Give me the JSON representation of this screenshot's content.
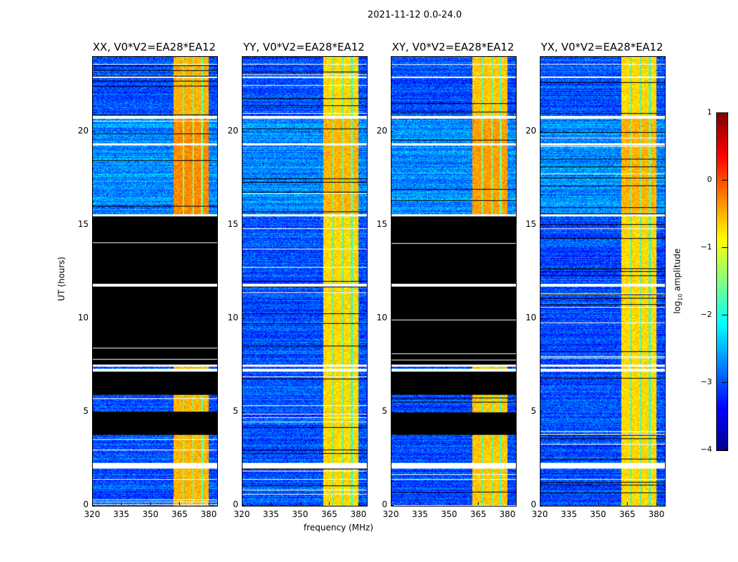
{
  "chart_data": {
    "type": "heatmap",
    "title": "2021-11-12 0.0-24.0",
    "xlabel": "frequency (MHz)",
    "ylabel": "UT (hours)",
    "xlim": [
      320,
      384
    ],
    "ylim": [
      0,
      24
    ],
    "xticks": [
      "320",
      "335",
      "350",
      "365",
      "380"
    ],
    "yticks": [
      "0",
      "5",
      "10",
      "15",
      "20"
    ],
    "colorbar": {
      "label_main": "log",
      "label_sub": "10",
      "label_rest": " amplitude",
      "range": [
        -4,
        1
      ],
      "ticks": [
        "1",
        "0",
        "−1",
        "−2",
        "−3",
        "−4"
      ],
      "colormap": "jet"
    },
    "rfi_band_mhz": [
      361.5,
      379.5
    ],
    "rfi_band_gaps_mhz": [
      366.5,
      371.5,
      376
    ],
    "background_level": -3,
    "band_level": -1,
    "blank_intervals_hours": [
      [
        2.0,
        2.3
      ],
      [
        1.4,
        1.45
      ],
      [
        7.2,
        7.35
      ],
      [
        7.45,
        7.55
      ],
      [
        11.75,
        11.9
      ],
      [
        15.5,
        15.6
      ],
      [
        20.7,
        20.85
      ],
      [
        19.3,
        19.4
      ],
      [
        22.9,
        22.95
      ],
      [
        23.6,
        23.65
      ]
    ],
    "panels": [
      {
        "title": "XX, V0*V2=EA28*EA12",
        "flagged_hours": [
          [
            3.8,
            5.0
          ],
          [
            5.95,
            7.2
          ],
          [
            7.55,
            11.75
          ],
          [
            11.9,
            15.5
          ]
        ],
        "strength": 0.5
      },
      {
        "title": "YY, V0*V2=EA28*EA12",
        "flagged_hours": [],
        "strength": 0.3
      },
      {
        "title": "XY, V0*V2=EA28*EA12",
        "flagged_hours": [
          [
            3.8,
            5.0
          ],
          [
            5.95,
            7.2
          ],
          [
            7.55,
            11.75
          ],
          [
            11.9,
            15.5
          ]
        ],
        "strength": 0.4
      },
      {
        "title": "YX, V0*V2=EA28*EA12",
        "flagged_hours": [],
        "strength": 0.3
      }
    ]
  }
}
